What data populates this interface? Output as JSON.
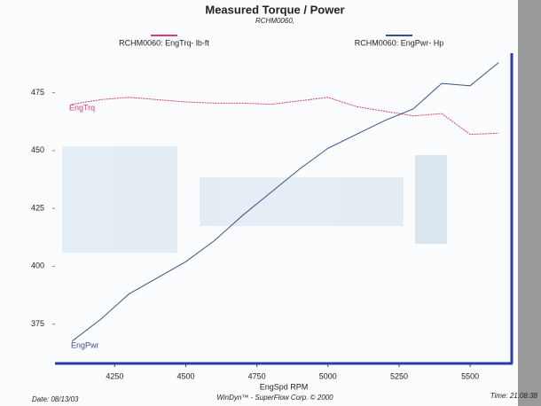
{
  "chart_data": {
    "type": "line",
    "title": "Measured Torque / Power",
    "subtitle": "RCHM0060,",
    "x_label": "EngSpd  RPM",
    "x": [
      4100,
      4200,
      4300,
      4400,
      4500,
      4600,
      4700,
      4800,
      4900,
      5000,
      5100,
      5200,
      5300,
      5400,
      5500,
      5600
    ],
    "series": [
      {
        "name": "RCHM0060: EngTrq- lb-ft",
        "short_name": "EngTrq",
        "color": "#d0406e",
        "values": [
          470,
          472,
          473,
          472,
          471,
          470.5,
          470.5,
          470,
          471.5,
          473,
          469,
          467,
          465,
          466,
          457,
          457.5
        ]
      },
      {
        "name": "RCHM0060: EngPwr- Hp",
        "short_name": "EngPwr",
        "color": "#3a4f8a",
        "values": [
          367.6,
          377,
          388,
          395,
          402,
          411,
          422,
          432,
          442,
          451,
          457,
          463,
          468,
          479,
          478,
          488
        ]
      }
    ],
    "xlim": [
      4040,
      5640
    ],
    "xticks": [
      4250,
      4500,
      4750,
      5000,
      5250,
      5500
    ],
    "ylim": [
      358,
      494
    ],
    "yticks": [
      375,
      400,
      425,
      450,
      475
    ],
    "footer": {
      "date": "Date: 08/13/03",
      "credit": "WinDyn™ - SuperFlow Corp. © 2000",
      "time": "Time: 21:08:38"
    }
  }
}
